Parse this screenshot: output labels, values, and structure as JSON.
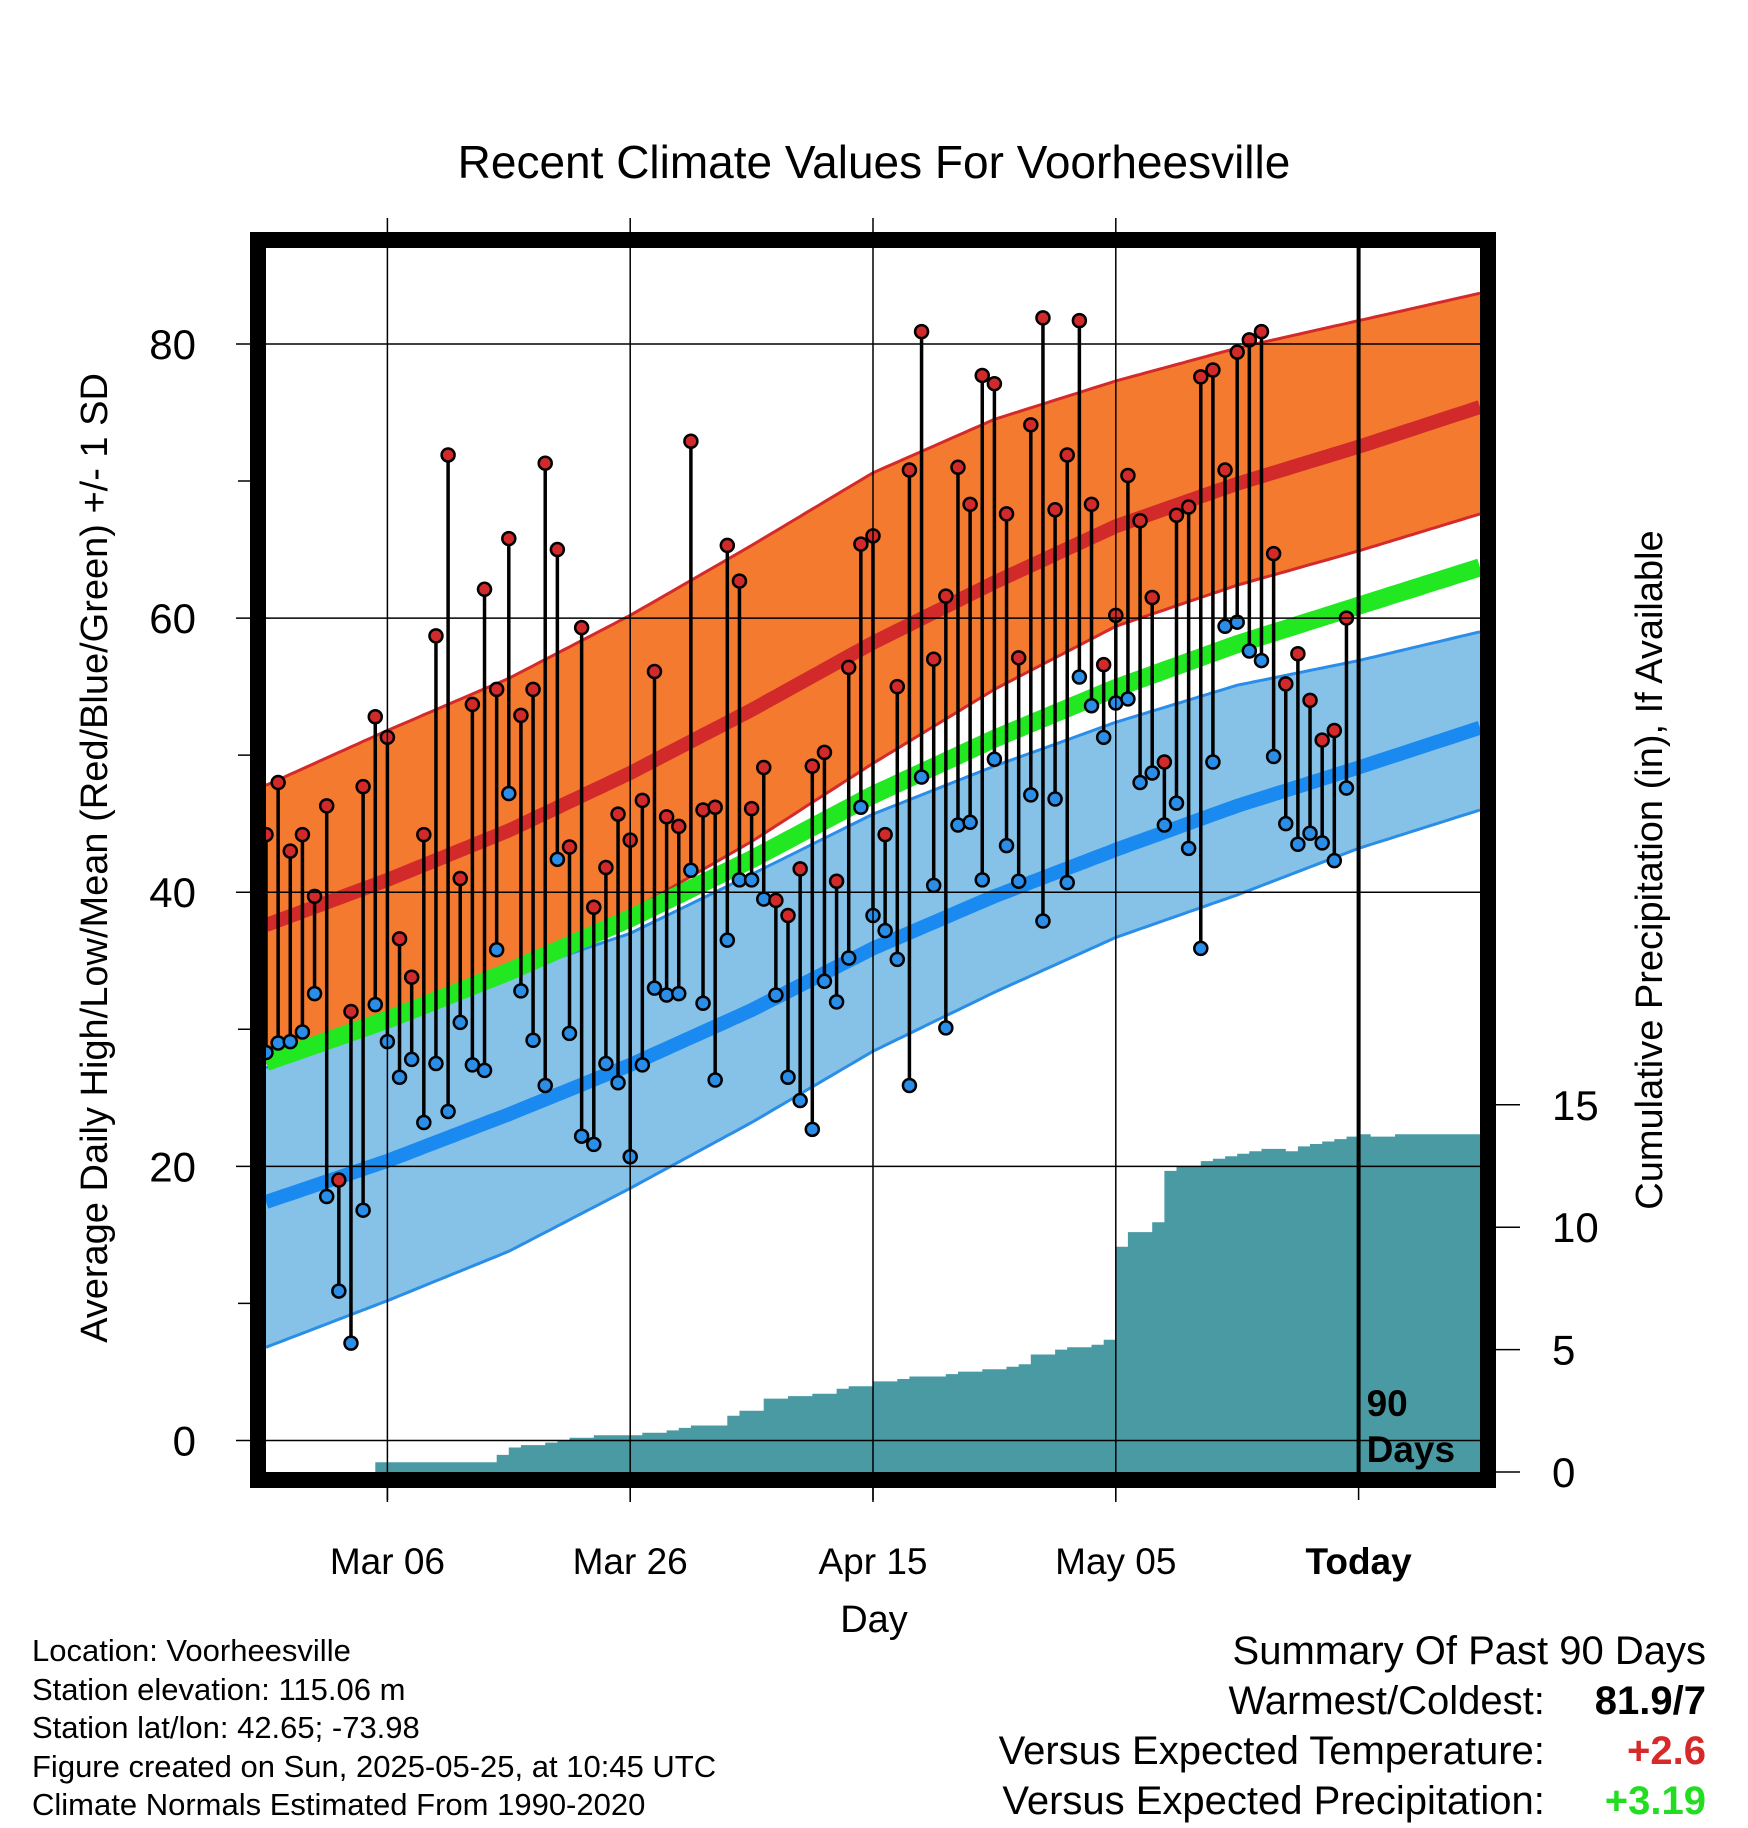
{
  "chart_data": {
    "type": "line",
    "title": "Recent Climate Values For Voorheesville",
    "xlabel": "Day",
    "ylabel": "Average Daily High/Low/Mean (Red/Blue/Green) +/- 1 SD",
    "y2label": "Cumulative Precipitation (in), If Available",
    "x_tick_labels": [
      "Mar 06",
      "Mar 26",
      "Apr 15",
      "May 05",
      "Today"
    ],
    "y_ticks": [
      0,
      20,
      40,
      60,
      80
    ],
    "y2_ticks": [
      0,
      5,
      10,
      15
    ],
    "ylim": [
      -2.3,
      87
    ],
    "y2lim": [
      0,
      50
    ],
    "today_label": "90 Days",
    "colors": {
      "high_band": "#f47a30",
      "high_band_edge": "#d42a2a",
      "high_mean": "#d22a2a",
      "low_band": "#86c2e8",
      "low_band_edge": "#2a8ee8",
      "low_mean": "#1a8af0",
      "mean": "#22e822",
      "precip": "#4a9aa4",
      "high_point": "#d22a2a",
      "low_point": "#2a8ee8"
    },
    "normal_high": {
      "x": [
        0,
        10,
        20,
        30,
        40,
        50,
        60,
        70,
        80,
        90,
        100
      ],
      "mean": [
        37.6,
        40.9,
        44.5,
        48.7,
        53.3,
        58.2,
        62.6,
        66.7,
        69.8,
        72.5,
        75.4
      ],
      "upper": [
        47.8,
        51.8,
        55.6,
        60.2,
        65.3,
        70.6,
        74.5,
        77.3,
        79.7,
        81.7,
        83.7
      ],
      "lower": [
        27.5,
        30.6,
        34.2,
        38.6,
        43.7,
        49.4,
        54.8,
        59.4,
        62.4,
        64.9,
        67.6
      ]
    },
    "normal_low": {
      "x": [
        0,
        10,
        20,
        30,
        40,
        50,
        60,
        70,
        80,
        90,
        100
      ],
      "mean": [
        17.4,
        20.4,
        23.8,
        27.4,
        31.4,
        35.9,
        39.7,
        43.1,
        46.3,
        49.1,
        52.0
      ],
      "upper": [
        27.2,
        30.5,
        34.0,
        37.0,
        41.3,
        45.7,
        49.2,
        52.4,
        55.1,
        56.9,
        59.0
      ],
      "lower": [
        6.8,
        10.2,
        13.8,
        18.4,
        23.2,
        28.4,
        32.7,
        36.7,
        39.8,
        43.2,
        46.0
      ]
    },
    "normal_mean": {
      "x": [
        0,
        10,
        20,
        30,
        40,
        50,
        60,
        70,
        80,
        90,
        100
      ],
      "values": [
        27.6,
        30.7,
        34.2,
        38.1,
        42.4,
        47.1,
        51.2,
        54.9,
        58.1,
        60.9,
        63.7
      ]
    },
    "daily": {
      "day": [
        0,
        1,
        2,
        3,
        4,
        5,
        6,
        7,
        8,
        9,
        10,
        11,
        12,
        13,
        14,
        15,
        16,
        17,
        18,
        19,
        20,
        21,
        22,
        23,
        24,
        25,
        26,
        27,
        28,
        29,
        30,
        31,
        32,
        33,
        34,
        35,
        36,
        37,
        38,
        39,
        40,
        41,
        42,
        43,
        44,
        45,
        46,
        47,
        48,
        49,
        50,
        51,
        52,
        53,
        54,
        55,
        56,
        57,
        58,
        59,
        60,
        61,
        62,
        63,
        64,
        65,
        66,
        67,
        68,
        69,
        70,
        71,
        72,
        73,
        74,
        75,
        76,
        77,
        78,
        79,
        80,
        81,
        82,
        83,
        84,
        85,
        86,
        87,
        88,
        89
      ],
      "high": [
        44.2,
        48.0,
        43.0,
        44.2,
        39.7,
        46.3,
        19.0,
        31.3,
        47.7,
        52.8,
        51.3,
        36.6,
        33.8,
        44.2,
        58.7,
        71.9,
        41.0,
        53.7,
        62.1,
        54.8,
        65.8,
        52.9,
        54.8,
        71.3,
        65.0,
        43.3,
        59.3,
        38.9,
        41.8,
        45.7,
        43.8,
        46.7,
        56.1,
        45.5,
        44.8,
        72.9,
        46.0,
        46.2,
        65.3,
        62.7,
        46.1,
        49.1,
        39.4,
        38.3,
        41.7,
        49.2,
        50.2,
        40.8,
        56.4,
        65.4,
        66.0,
        44.2,
        55.0,
        70.8,
        80.9,
        57.0,
        61.6,
        71.0,
        68.3,
        77.7,
        77.1,
        67.6,
        57.1,
        74.1,
        81.9,
        67.9,
        71.9,
        81.7,
        68.3,
        56.6,
        60.2,
        70.4,
        67.1,
        61.5,
        49.5,
        67.5,
        68.1,
        77.6,
        78.1,
        70.8,
        79.4,
        80.3,
        80.9,
        64.7,
        55.2,
        57.4,
        54.0,
        51.1,
        51.8,
        60.0
      ],
      "low": [
        28.3,
        29.0,
        29.1,
        29.8,
        32.6,
        17.8,
        10.9,
        7.1,
        16.8,
        31.8,
        29.1,
        26.5,
        27.8,
        23.2,
        27.5,
        24.0,
        30.5,
        27.4,
        27.0,
        35.8,
        47.2,
        32.8,
        29.2,
        25.9,
        42.4,
        29.7,
        22.2,
        21.6,
        27.5,
        26.1,
        20.7,
        27.4,
        33.0,
        32.5,
        32.6,
        41.6,
        31.9,
        26.3,
        36.5,
        40.9,
        40.9,
        39.5,
        32.5,
        26.5,
        24.8,
        22.7,
        33.5,
        32.0,
        35.2,
        46.2,
        38.3,
        37.2,
        35.1,
        25.9,
        48.4,
        40.5,
        30.1,
        44.9,
        45.1,
        40.9,
        49.7,
        43.4,
        40.8,
        47.1,
        37.9,
        46.8,
        40.7,
        55.7,
        53.6,
        51.3,
        53.8,
        54.1,
        48.0,
        48.7,
        44.9,
        46.5,
        43.2,
        35.9,
        49.5,
        59.4,
        59.7,
        57.6,
        56.9,
        49.9,
        45.0,
        43.5,
        44.3,
        43.6,
        42.3,
        47.6
      ]
    },
    "precip": {
      "day": [
        0,
        8,
        9,
        18,
        19,
        20,
        21,
        22,
        23,
        24,
        25,
        27,
        30,
        31,
        32,
        33,
        34,
        35,
        36,
        37,
        38,
        39,
        40,
        41,
        42,
        43,
        44,
        45,
        46,
        47,
        48,
        49,
        50,
        51,
        52,
        53,
        54,
        55,
        56,
        57,
        58,
        59,
        60,
        61,
        62,
        63,
        64,
        65,
        66,
        67,
        68,
        69,
        70,
        71,
        72,
        73,
        74,
        75,
        76,
        77,
        78,
        79,
        80,
        81,
        82,
        83,
        84,
        85,
        86,
        87,
        88,
        89,
        90,
        91,
        92,
        93,
        94,
        95,
        96,
        97,
        98,
        99
      ],
      "cumulative": [
        0,
        0,
        0.4,
        0.4,
        0.7,
        1.0,
        1.1,
        1.1,
        1.2,
        1.3,
        1.4,
        1.5,
        1.5,
        1.6,
        1.6,
        1.7,
        1.8,
        1.9,
        1.9,
        1.9,
        2.3,
        2.5,
        2.5,
        3.0,
        3.0,
        3.1,
        3.1,
        3.2,
        3.2,
        3.4,
        3.5,
        3.5,
        3.7,
        3.7,
        3.8,
        3.9,
        3.9,
        3.9,
        4.0,
        4.1,
        4.1,
        4.2,
        4.2,
        4.3,
        4.4,
        4.8,
        4.8,
        5.0,
        5.1,
        5.1,
        5.2,
        5.4,
        9.2,
        9.8,
        9.8,
        10.2,
        12.3,
        12.5,
        12.5,
        12.7,
        12.8,
        12.9,
        13.0,
        13.1,
        13.2,
        13.2,
        13.1,
        13.3,
        13.4,
        13.5,
        13.6,
        13.7,
        13.8,
        13.7,
        13.7,
        13.8,
        13.8,
        13.8,
        13.8,
        13.8,
        13.8,
        13.8
      ]
    }
  },
  "meta": {
    "location": "Location: Voorheesville",
    "elevation": "Station elevation: 115.06 m",
    "latlon": "Station lat/lon: 42.65; -73.98",
    "created": "Figure created on Sun, 2025-05-25, at 10:45 UTC",
    "normals": "Climate Normals Estimated From 1990-2020"
  },
  "summary": {
    "heading": "Summary Of Past 90 Days",
    "warmest_label": "Warmest/Coldest:",
    "warmest_value": "81.9/7",
    "temp_label": "Versus Expected Temperature:",
    "temp_value": "+2.6",
    "temp_color": "#d62a2a",
    "precip_label": "Versus Expected Precipitation:",
    "precip_value": "+3.19",
    "precip_color": "#22dd22"
  }
}
